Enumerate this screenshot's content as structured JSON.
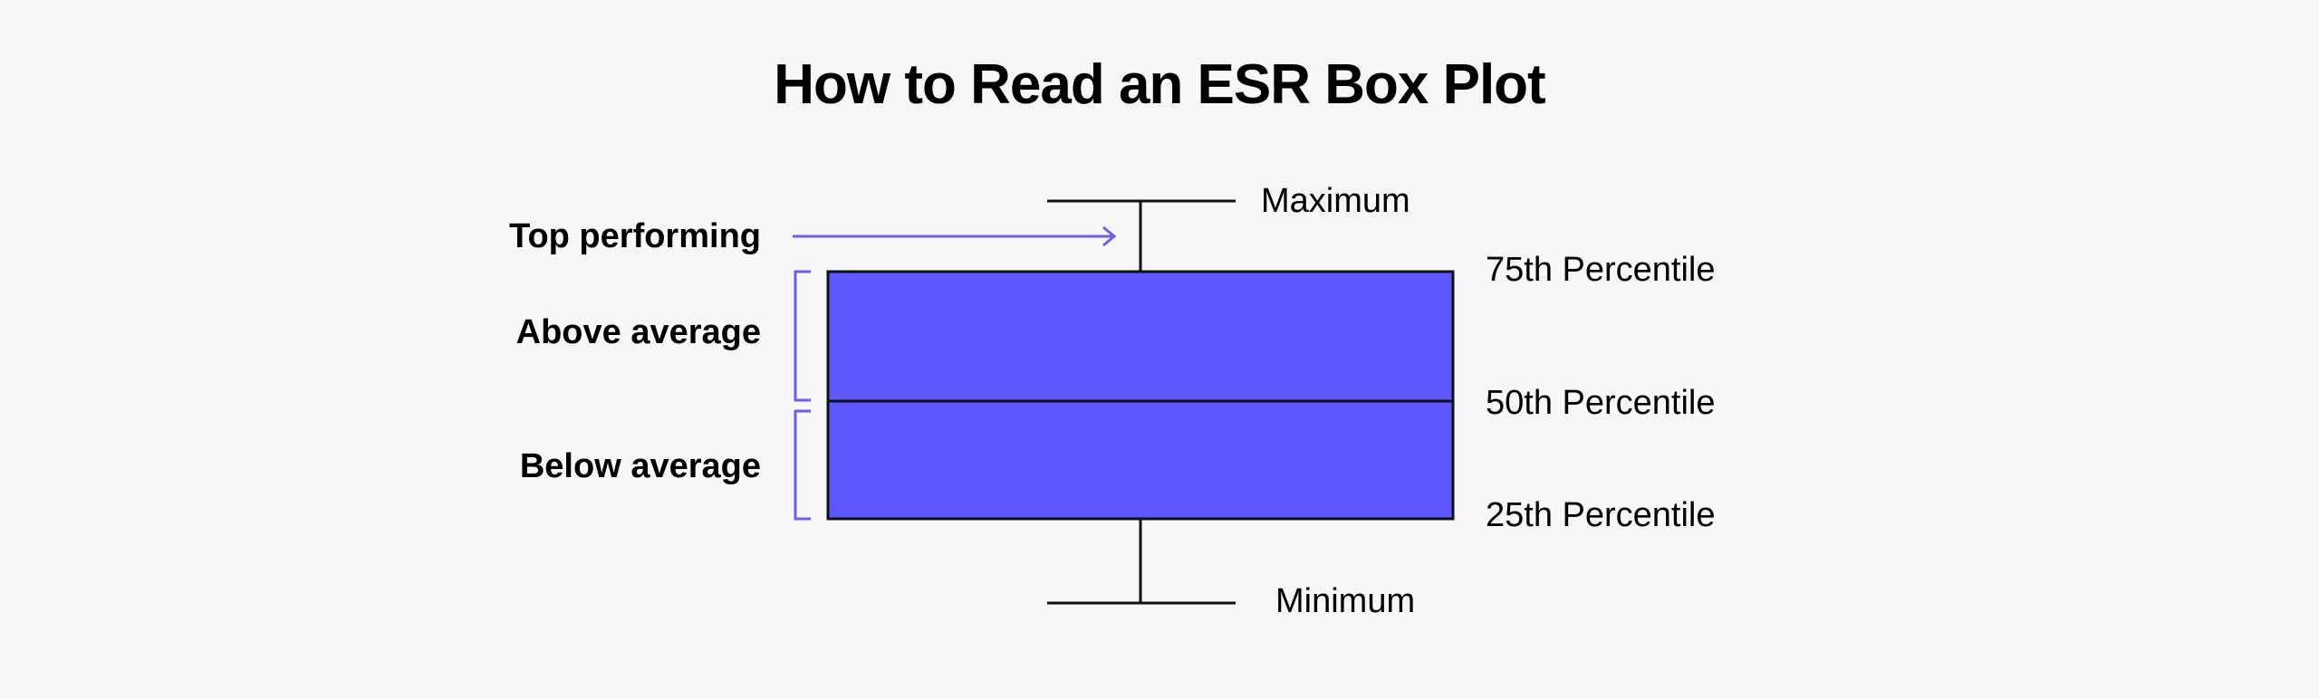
{
  "title": "How to Read an ESR Box Plot",
  "colors": {
    "box_fill": "#5c57ff",
    "accent": "#6a5fe8",
    "line": "#111111",
    "background": "#f7f7f7"
  },
  "left_labels": {
    "top_performing": "Top performing",
    "above_average": "Above average",
    "below_average": "Below average"
  },
  "right_labels": {
    "maximum": "Maximum",
    "p75": "75th Percentile",
    "p50": "50th Percentile",
    "p25": "25th Percentile",
    "minimum": "Minimum"
  }
}
